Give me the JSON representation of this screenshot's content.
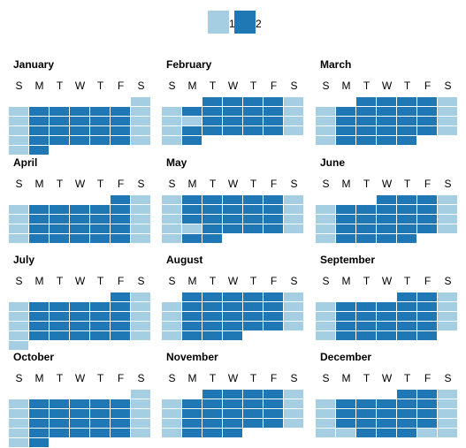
{
  "chart_data": {
    "type": "heatmap",
    "subtype": "calendar",
    "title": "",
    "weekdays": [
      "S",
      "M",
      "T",
      "W",
      "T",
      "F",
      "S"
    ],
    "legend": {
      "placement": "top-center",
      "items": [
        {
          "label": "1",
          "color": "#a6cee3"
        },
        {
          "label": "2",
          "color": "#1f78b4"
        }
      ]
    },
    "value_colors": {
      "1": "#a6cee3",
      "2": "#1f78b4"
    },
    "months": [
      {
        "name": "January",
        "start_weekday": 6,
        "days": [
          1,
          1,
          2,
          2,
          2,
          2,
          2,
          1,
          1,
          2,
          2,
          2,
          2,
          2,
          1,
          1,
          2,
          2,
          2,
          2,
          2,
          1,
          1,
          2,
          2,
          2,
          2,
          2,
          1,
          1,
          2
        ]
      },
      {
        "name": "February",
        "start_weekday": 2,
        "days": [
          2,
          2,
          2,
          2,
          1,
          1,
          2,
          2,
          2,
          2,
          2,
          1,
          1,
          1,
          2,
          2,
          2,
          2,
          1,
          1,
          2,
          2,
          2,
          2,
          2,
          1,
          1,
          2
        ]
      },
      {
        "name": "March",
        "start_weekday": 2,
        "days": [
          2,
          2,
          2,
          2,
          1,
          1,
          2,
          2,
          2,
          2,
          2,
          1,
          1,
          2,
          2,
          2,
          2,
          2,
          1,
          1,
          2,
          2,
          2,
          2,
          2,
          1,
          1,
          2,
          2,
          2,
          2
        ]
      },
      {
        "name": "April",
        "start_weekday": 5,
        "days": [
          2,
          1,
          1,
          2,
          2,
          2,
          2,
          2,
          1,
          1,
          2,
          2,
          2,
          2,
          2,
          1,
          1,
          2,
          2,
          2,
          2,
          2,
          1,
          1,
          2,
          2,
          2,
          2,
          2,
          1
        ]
      },
      {
        "name": "May",
        "start_weekday": 0,
        "days": [
          1,
          2,
          2,
          2,
          2,
          2,
          1,
          1,
          2,
          2,
          2,
          2,
          2,
          1,
          1,
          2,
          2,
          2,
          2,
          2,
          1,
          1,
          1,
          2,
          2,
          2,
          2,
          1,
          1,
          2,
          2
        ]
      },
      {
        "name": "June",
        "start_weekday": 3,
        "days": [
          2,
          2,
          2,
          1,
          1,
          2,
          2,
          2,
          2,
          2,
          1,
          1,
          2,
          2,
          2,
          2,
          2,
          1,
          1,
          2,
          2,
          2,
          2,
          2,
          1,
          1,
          2,
          2,
          2,
          2
        ]
      },
      {
        "name": "July",
        "start_weekday": 5,
        "days": [
          2,
          1,
          1,
          2,
          2,
          2,
          2,
          2,
          1,
          1,
          2,
          2,
          2,
          2,
          2,
          1,
          1,
          2,
          2,
          2,
          2,
          2,
          1,
          1,
          2,
          2,
          2,
          2,
          2,
          1,
          1
        ]
      },
      {
        "name": "August",
        "start_weekday": 1,
        "days": [
          2,
          2,
          2,
          2,
          2,
          1,
          1,
          2,
          2,
          2,
          2,
          2,
          1,
          1,
          2,
          2,
          2,
          2,
          2,
          1,
          1,
          2,
          2,
          2,
          2,
          2,
          1,
          1,
          2,
          2,
          2
        ]
      },
      {
        "name": "September",
        "start_weekday": 4,
        "days": [
          2,
          2,
          1,
          1,
          2,
          2,
          2,
          2,
          2,
          1,
          1,
          2,
          2,
          2,
          2,
          2,
          1,
          1,
          2,
          2,
          2,
          2,
          2,
          1,
          1,
          2,
          2,
          2,
          2,
          2
        ]
      },
      {
        "name": "October",
        "start_weekday": 6,
        "days": [
          1,
          1,
          2,
          2,
          2,
          2,
          2,
          1,
          1,
          2,
          2,
          2,
          2,
          2,
          1,
          1,
          2,
          2,
          2,
          2,
          2,
          1,
          1,
          2,
          2,
          2,
          2,
          2,
          1,
          1,
          2
        ]
      },
      {
        "name": "November",
        "start_weekday": 2,
        "days": [
          2,
          2,
          2,
          2,
          1,
          1,
          2,
          2,
          2,
          2,
          2,
          1,
          1,
          2,
          2,
          2,
          2,
          2,
          1,
          1,
          2,
          2,
          2,
          2,
          2,
          1,
          1,
          2,
          2,
          2
        ]
      },
      {
        "name": "December",
        "start_weekday": 4,
        "days": [
          2,
          2,
          1,
          1,
          2,
          2,
          2,
          2,
          2,
          1,
          1,
          2,
          2,
          2,
          2,
          2,
          1,
          1,
          2,
          2,
          2,
          2,
          2,
          1,
          1,
          1,
          2,
          2,
          2,
          1,
          1
        ]
      }
    ]
  }
}
